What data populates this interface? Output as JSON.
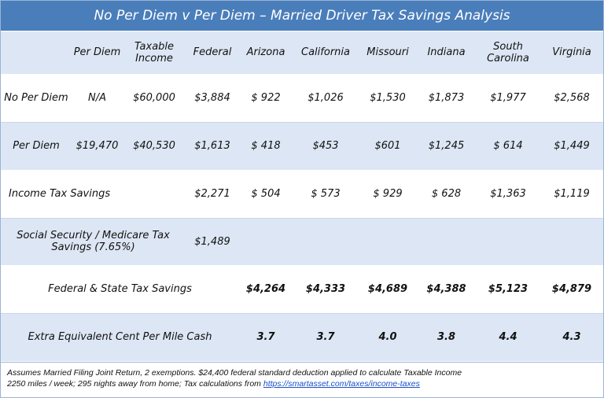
{
  "title": "No Per Diem v Per Diem – Married Driver Tax Savings Analysis",
  "header": [
    "",
    "Per Diem",
    "Taxable Income",
    "Federal",
    "Arizona",
    "California",
    "Missouri",
    "Indiana",
    "South Carolina",
    "Virginia"
  ],
  "rows": {
    "no_per_diem": [
      "No Per Diem",
      "N/A",
      "$60,000",
      "$3,884",
      "$ 922",
      "$1,026",
      "$1,530",
      "$1,873",
      "$1,977",
      "$2,568"
    ],
    "per_diem": [
      "Per Diem",
      "$19,470",
      "$40,530",
      "$1,613",
      "$ 418",
      "$453",
      "$601",
      "$1,245",
      "$ 614",
      "$1,449"
    ],
    "income_tax_savings": {
      "label": "Income Tax Savings",
      "values": [
        "$2,271",
        "$ 504",
        "$ 573",
        "$ 929",
        "$ 628",
        "$1,363",
        "$1,119"
      ]
    },
    "fica": {
      "label": "Social Security / Medicare Tax Savings (7.65%)",
      "value": "$1,489"
    },
    "fed_state": {
      "label": "Federal & State Tax Savings",
      "values": [
        "$4,264",
        "$4,333",
        "$4,689",
        "$4,388",
        "$5,123",
        "$4,879"
      ]
    },
    "cpm": {
      "label": "Extra Equivalent Cent Per Mile Cash",
      "values": [
        "3.7",
        "3.7",
        "4.0",
        "3.8",
        "4.4",
        "4.3"
      ]
    }
  },
  "footnote": {
    "line1": "Assumes Married Filing Joint Return, 2 exemptions. $24,400 federal standard deduction applied to calculate Taxable Income",
    "line2_prefix": "2250 miles / week; 295 nights away from home; Tax calculations from ",
    "link": "https://smartasset.com/taxes/income-taxes"
  },
  "colors": {
    "title_bar": "#4a7ebb",
    "shade_row": "#dde6f4",
    "link": "#1a4fc4"
  }
}
